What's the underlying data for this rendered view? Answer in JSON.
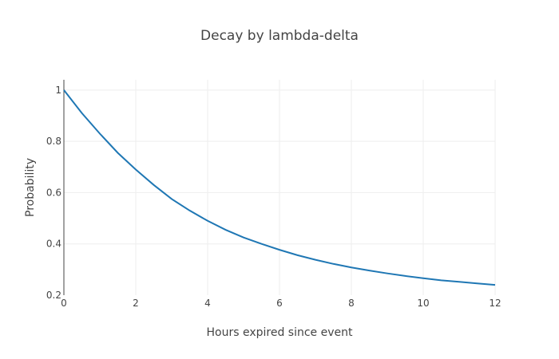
{
  "chart_data": {
    "type": "line",
    "title": "Decay by lambda-delta",
    "xlabel": "Hours expired since event",
    "ylabel": "Probability",
    "xlim": [
      0,
      12
    ],
    "ylim": [
      0.2,
      1.04
    ],
    "xticks": [
      0,
      2,
      4,
      6,
      8,
      10,
      12
    ],
    "yticks": [
      0.2,
      0.4,
      0.6,
      0.8,
      1
    ],
    "ytick_labels": [
      "0.2",
      "0.4",
      "0.6",
      "0.8",
      "1"
    ],
    "grid": true,
    "legend": "none",
    "series": [
      {
        "color": "#1f77b4",
        "x": [
          0,
          0.5,
          1,
          1.5,
          2,
          2.5,
          3,
          3.5,
          4,
          4.5,
          5,
          5.5,
          6,
          6.5,
          7,
          7.5,
          8,
          8.5,
          9,
          9.5,
          10,
          10.5,
          11,
          11.5,
          12
        ],
        "y": [
          1.0,
          0.91,
          0.83,
          0.755,
          0.69,
          0.63,
          0.575,
          0.53,
          0.49,
          0.455,
          0.425,
          0.4,
          0.377,
          0.356,
          0.338,
          0.322,
          0.308,
          0.296,
          0.285,
          0.275,
          0.266,
          0.258,
          0.252,
          0.246,
          0.24
        ]
      }
    ]
  }
}
